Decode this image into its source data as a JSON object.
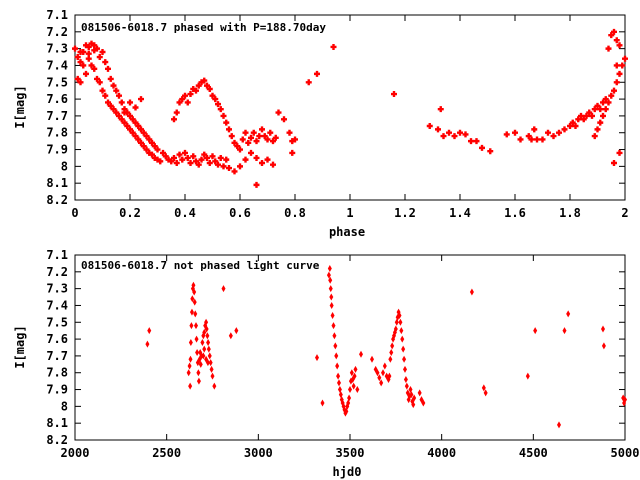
{
  "chart_data": [
    {
      "type": "scatter",
      "title": "081506-6018.7 phased with P=188.70day",
      "xlabel": "phase",
      "ylabel": "I[mag]",
      "xlim": [
        0,
        2
      ],
      "ylim": [
        8.2,
        7.1
      ],
      "y_inverted": true,
      "x_ticks": [
        "0",
        "0.2",
        "0.4",
        "0.6",
        "0.8",
        "1",
        "1.2",
        "1.4",
        "1.6",
        "1.8",
        "2"
      ],
      "y_ticks": [
        "7.1",
        "7.2",
        "7.3",
        "7.4",
        "7.5",
        "7.6",
        "7.7",
        "7.8",
        "7.9",
        "8",
        "8.1",
        "8.2"
      ],
      "marker": "plus",
      "color": "#ff0000",
      "points": [
        [
          0.0,
          7.3
        ],
        [
          0.01,
          7.35
        ],
        [
          0.01,
          7.48
        ],
        [
          0.02,
          7.5
        ],
        [
          0.02,
          7.38
        ],
        [
          0.03,
          7.32
        ],
        [
          0.03,
          7.4
        ],
        [
          0.04,
          7.28
        ],
        [
          0.04,
          7.45
        ],
        [
          0.05,
          7.29
        ],
        [
          0.05,
          7.36
        ],
        [
          0.06,
          7.27
        ],
        [
          0.06,
          7.4
        ],
        [
          0.07,
          7.42
        ],
        [
          0.07,
          7.31
        ],
        [
          0.08,
          7.3
        ],
        [
          0.08,
          7.48
        ],
        [
          0.09,
          7.5
        ],
        [
          0.09,
          7.35
        ],
        [
          0.1,
          7.55
        ],
        [
          0.1,
          7.32
        ],
        [
          0.11,
          7.58
        ],
        [
          0.11,
          7.38
        ],
        [
          0.12,
          7.62
        ],
        [
          0.12,
          7.42
        ],
        [
          0.13,
          7.64
        ],
        [
          0.13,
          7.48
        ],
        [
          0.14,
          7.66
        ],
        [
          0.14,
          7.52
        ],
        [
          0.15,
          7.68
        ],
        [
          0.15,
          7.55
        ],
        [
          0.16,
          7.7
        ],
        [
          0.16,
          7.58
        ],
        [
          0.17,
          7.72
        ],
        [
          0.17,
          7.62
        ],
        [
          0.18,
          7.74
        ],
        [
          0.18,
          7.66
        ],
        [
          0.19,
          7.76
        ],
        [
          0.19,
          7.68
        ],
        [
          0.2,
          7.78
        ],
        [
          0.2,
          7.7
        ],
        [
          0.21,
          7.8
        ],
        [
          0.21,
          7.72
        ],
        [
          0.22,
          7.82
        ],
        [
          0.22,
          7.74
        ],
        [
          0.23,
          7.84
        ],
        [
          0.23,
          7.76
        ],
        [
          0.24,
          7.86
        ],
        [
          0.24,
          7.78
        ],
        [
          0.25,
          7.88
        ],
        [
          0.25,
          7.8
        ],
        [
          0.26,
          7.9
        ],
        [
          0.26,
          7.82
        ],
        [
          0.27,
          7.92
        ],
        [
          0.27,
          7.84
        ],
        [
          0.28,
          7.93
        ],
        [
          0.28,
          7.86
        ],
        [
          0.29,
          7.95
        ],
        [
          0.29,
          7.88
        ],
        [
          0.3,
          7.96
        ],
        [
          0.3,
          7.9
        ],
        [
          0.31,
          7.97
        ],
        [
          0.32,
          7.92
        ],
        [
          0.33,
          7.94
        ],
        [
          0.34,
          7.96
        ],
        [
          0.35,
          7.97
        ],
        [
          0.36,
          7.95
        ],
        [
          0.37,
          7.98
        ],
        [
          0.38,
          7.93
        ],
        [
          0.39,
          7.96
        ],
        [
          0.4,
          7.92
        ],
        [
          0.41,
          7.95
        ],
        [
          0.42,
          7.98
        ],
        [
          0.43,
          7.94
        ],
        [
          0.44,
          7.97
        ],
        [
          0.45,
          7.99
        ],
        [
          0.46,
          7.96
        ],
        [
          0.47,
          7.93
        ],
        [
          0.48,
          7.95
        ],
        [
          0.49,
          7.98
        ],
        [
          0.5,
          7.94
        ],
        [
          0.51,
          7.97
        ],
        [
          0.52,
          7.99
        ],
        [
          0.53,
          7.95
        ],
        [
          0.54,
          8.0
        ],
        [
          0.55,
          7.96
        ],
        [
          0.36,
          7.72
        ],
        [
          0.37,
          7.68
        ],
        [
          0.38,
          7.62
        ],
        [
          0.39,
          7.6
        ],
        [
          0.4,
          7.58
        ],
        [
          0.41,
          7.62
        ],
        [
          0.42,
          7.57
        ],
        [
          0.43,
          7.54
        ],
        [
          0.44,
          7.55
        ],
        [
          0.45,
          7.52
        ],
        [
          0.46,
          7.5
        ],
        [
          0.47,
          7.49
        ],
        [
          0.48,
          7.52
        ],
        [
          0.49,
          7.54
        ],
        [
          0.5,
          7.58
        ],
        [
          0.51,
          7.6
        ],
        [
          0.52,
          7.63
        ],
        [
          0.53,
          7.66
        ],
        [
          0.54,
          7.7
        ],
        [
          0.55,
          7.74
        ],
        [
          0.56,
          7.78
        ],
        [
          0.57,
          7.82
        ],
        [
          0.58,
          7.86
        ],
        [
          0.59,
          7.88
        ],
        [
          0.6,
          7.9
        ],
        [
          0.61,
          7.84
        ],
        [
          0.62,
          7.8
        ],
        [
          0.63,
          7.86
        ],
        [
          0.64,
          7.83
        ],
        [
          0.65,
          7.8
        ],
        [
          0.66,
          7.85
        ],
        [
          0.67,
          7.82
        ],
        [
          0.68,
          7.78
        ],
        [
          0.69,
          7.82
        ],
        [
          0.7,
          7.84
        ],
        [
          0.71,
          7.8
        ],
        [
          0.72,
          7.85
        ],
        [
          0.73,
          7.83
        ],
        [
          0.56,
          8.01
        ],
        [
          0.58,
          8.03
        ],
        [
          0.6,
          8.0
        ],
        [
          0.62,
          7.96
        ],
        [
          0.64,
          7.92
        ],
        [
          0.66,
          7.95
        ],
        [
          0.68,
          7.98
        ],
        [
          0.7,
          7.96
        ],
        [
          0.72,
          7.99
        ],
        [
          0.66,
          8.11
        ],
        [
          0.74,
          7.68
        ],
        [
          0.76,
          7.72
        ],
        [
          0.78,
          7.8
        ],
        [
          0.79,
          7.85
        ],
        [
          0.8,
          7.84
        ],
        [
          0.79,
          7.92
        ],
        [
          0.85,
          7.5
        ],
        [
          0.88,
          7.45
        ],
        [
          0.94,
          7.29
        ],
        [
          1.16,
          7.57
        ],
        [
          1.29,
          7.76
        ],
        [
          1.32,
          7.78
        ],
        [
          1.33,
          7.66
        ],
        [
          1.34,
          7.82
        ],
        [
          1.36,
          7.8
        ],
        [
          1.38,
          7.82
        ],
        [
          1.4,
          7.8
        ],
        [
          1.42,
          7.81
        ],
        [
          1.44,
          7.85
        ],
        [
          1.46,
          7.85
        ],
        [
          1.48,
          7.89
        ],
        [
          1.51,
          7.91
        ],
        [
          1.57,
          7.81
        ],
        [
          1.6,
          7.8
        ],
        [
          1.62,
          7.84
        ],
        [
          1.65,
          7.82
        ],
        [
          1.66,
          7.84
        ],
        [
          1.67,
          7.78
        ],
        [
          1.68,
          7.84
        ],
        [
          1.7,
          7.84
        ],
        [
          1.72,
          7.8
        ],
        [
          1.74,
          7.82
        ],
        [
          1.76,
          7.8
        ],
        [
          1.78,
          7.78
        ],
        [
          1.8,
          7.76
        ],
        [
          1.81,
          7.74
        ],
        [
          1.82,
          7.76
        ],
        [
          1.83,
          7.72
        ],
        [
          1.84,
          7.7
        ],
        [
          1.85,
          7.72
        ],
        [
          1.86,
          7.7
        ],
        [
          1.87,
          7.68
        ],
        [
          1.88,
          7.7
        ],
        [
          1.89,
          7.66
        ],
        [
          1.9,
          7.64
        ],
        [
          1.91,
          7.66
        ],
        [
          1.92,
          7.62
        ],
        [
          1.93,
          7.6
        ],
        [
          1.94,
          7.62
        ],
        [
          1.95,
          7.58
        ],
        [
          1.96,
          7.55
        ],
        [
          1.97,
          7.5
        ],
        [
          1.98,
          7.45
        ],
        [
          1.99,
          7.4
        ],
        [
          2.0,
          7.36
        ],
        [
          1.95,
          7.22
        ],
        [
          1.96,
          7.2
        ],
        [
          1.97,
          7.25
        ],
        [
          1.98,
          7.28
        ],
        [
          1.94,
          7.3
        ],
        [
          1.97,
          7.4
        ],
        [
          1.96,
          7.98
        ],
        [
          1.98,
          7.92
        ],
        [
          1.93,
          7.66
        ],
        [
          1.92,
          7.7
        ],
        [
          1.9,
          7.78
        ],
        [
          1.89,
          7.82
        ],
        [
          1.91,
          7.74
        ],
        [
          0.18,
          7.68
        ],
        [
          0.2,
          7.62
        ],
        [
          0.22,
          7.65
        ],
        [
          0.24,
          7.6
        ],
        [
          0.02,
          7.32
        ],
        [
          0.05,
          7.33
        ],
        [
          0.07,
          7.28
        ]
      ]
    },
    {
      "type": "scatter",
      "title": "081506-6018.7 not phased light curve",
      "xlabel": "hjd0",
      "ylabel": "I[mag]",
      "xlim": [
        2000,
        5000
      ],
      "ylim": [
        8.2,
        7.1
      ],
      "y_inverted": true,
      "x_ticks": [
        "2000",
        "2500",
        "3000",
        "3500",
        "4000",
        "4500",
        "5000"
      ],
      "y_ticks": [
        "7.1",
        "7.2",
        "7.3",
        "7.4",
        "7.5",
        "7.6",
        "7.7",
        "7.8",
        "7.9",
        "8",
        "8.1",
        "8.2"
      ],
      "marker": "diamond",
      "color": "#ff0000",
      "points": [
        [
          2395,
          7.63
        ],
        [
          2405,
          7.55
        ],
        [
          2620,
          7.8
        ],
        [
          2625,
          7.76
        ],
        [
          2628,
          7.88
        ],
        [
          2630,
          7.72
        ],
        [
          2632,
          7.62
        ],
        [
          2635,
          7.52
        ],
        [
          2638,
          7.44
        ],
        [
          2640,
          7.36
        ],
        [
          2643,
          7.3
        ],
        [
          2646,
          7.28
        ],
        [
          2650,
          7.32
        ],
        [
          2653,
          7.38
        ],
        [
          2656,
          7.45
        ],
        [
          2660,
          7.52
        ],
        [
          2663,
          7.6
        ],
        [
          2666,
          7.68
        ],
        [
          2670,
          7.74
        ],
        [
          2673,
          7.8
        ],
        [
          2676,
          7.85
        ],
        [
          2680,
          7.72
        ],
        [
          2683,
          7.68
        ],
        [
          2686,
          7.75
        ],
        [
          2690,
          7.7
        ],
        [
          2695,
          7.62
        ],
        [
          2700,
          7.58
        ],
        [
          2705,
          7.56
        ],
        [
          2710,
          7.52
        ],
        [
          2715,
          7.5
        ],
        [
          2718,
          7.54
        ],
        [
          2722,
          7.58
        ],
        [
          2726,
          7.62
        ],
        [
          2730,
          7.66
        ],
        [
          2735,
          7.7
        ],
        [
          2740,
          7.74
        ],
        [
          2745,
          7.78
        ],
        [
          2750,
          7.82
        ],
        [
          2760,
          7.88
        ],
        [
          2700,
          7.7
        ],
        [
          2705,
          7.66
        ],
        [
          2715,
          7.72
        ],
        [
          2725,
          7.74
        ],
        [
          2810,
          7.3
        ],
        [
          2850,
          7.58
        ],
        [
          2880,
          7.55
        ],
        [
          3320,
          7.71
        ],
        [
          3350,
          7.98
        ],
        [
          3385,
          7.22
        ],
        [
          3390,
          7.18
        ],
        [
          3392,
          7.25
        ],
        [
          3395,
          7.3
        ],
        [
          3398,
          7.35
        ],
        [
          3400,
          7.4
        ],
        [
          3405,
          7.46
        ],
        [
          3410,
          7.52
        ],
        [
          3415,
          7.58
        ],
        [
          3420,
          7.64
        ],
        [
          3425,
          7.7
        ],
        [
          3430,
          7.76
        ],
        [
          3435,
          7.82
        ],
        [
          3440,
          7.86
        ],
        [
          3445,
          7.9
        ],
        [
          3450,
          7.93
        ],
        [
          3455,
          7.96
        ],
        [
          3460,
          7.98
        ],
        [
          3465,
          8.0
        ],
        [
          3470,
          8.02
        ],
        [
          3475,
          8.04
        ],
        [
          3480,
          8.03
        ],
        [
          3485,
          8.0
        ],
        [
          3490,
          7.98
        ],
        [
          3495,
          7.95
        ],
        [
          3500,
          7.9
        ],
        [
          3505,
          7.85
        ],
        [
          3510,
          7.8
        ],
        [
          3515,
          7.84
        ],
        [
          3520,
          7.88
        ],
        [
          3525,
          7.82
        ],
        [
          3530,
          7.78
        ],
        [
          3540,
          7.9
        ],
        [
          3560,
          7.69
        ],
        [
          3620,
          7.72
        ],
        [
          3640,
          7.78
        ],
        [
          3650,
          7.8
        ],
        [
          3660,
          7.83
        ],
        [
          3670,
          7.86
        ],
        [
          3680,
          7.8
        ],
        [
          3690,
          7.76
        ],
        [
          3700,
          7.82
        ],
        [
          3710,
          7.84
        ],
        [
          3715,
          7.82
        ],
        [
          3720,
          7.72
        ],
        [
          3725,
          7.68
        ],
        [
          3730,
          7.64
        ],
        [
          3735,
          7.6
        ],
        [
          3740,
          7.58
        ],
        [
          3745,
          7.56
        ],
        [
          3750,
          7.54
        ],
        [
          3755,
          7.5
        ],
        [
          3760,
          7.47
        ],
        [
          3765,
          7.44
        ],
        [
          3770,
          7.46
        ],
        [
          3775,
          7.5
        ],
        [
          3780,
          7.55
        ],
        [
          3785,
          7.6
        ],
        [
          3790,
          7.66
        ],
        [
          3795,
          7.72
        ],
        [
          3800,
          7.78
        ],
        [
          3805,
          7.84
        ],
        [
          3810,
          7.88
        ],
        [
          3815,
          7.92
        ],
        [
          3820,
          7.96
        ],
        [
          3825,
          7.94
        ],
        [
          3830,
          7.9
        ],
        [
          3835,
          7.93
        ],
        [
          3840,
          7.97
        ],
        [
          3845,
          7.99
        ],
        [
          3850,
          7.95
        ],
        [
          3880,
          7.92
        ],
        [
          3890,
          7.96
        ],
        [
          3900,
          7.98
        ],
        [
          4165,
          7.32
        ],
        [
          4230,
          7.89
        ],
        [
          4240,
          7.92
        ],
        [
          4470,
          7.82
        ],
        [
          4510,
          7.55
        ],
        [
          4640,
          8.11
        ],
        [
          4670,
          7.55
        ],
        [
          4690,
          7.45
        ],
        [
          4880,
          7.54
        ],
        [
          4885,
          7.64
        ],
        [
          4990,
          7.95
        ],
        [
          4995,
          7.98
        ],
        [
          5000,
          7.96
        ]
      ]
    }
  ]
}
